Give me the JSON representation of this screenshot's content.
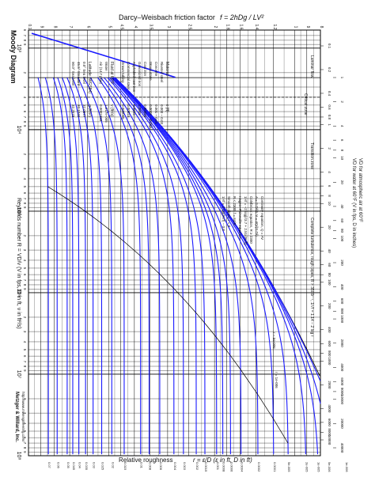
{
  "top_title": {
    "prefix": "Darcy–Weisbach friction factor",
    "formula": "f = 2hDg / LV²"
  },
  "side_title": "Moody Diagram",
  "bottom_title": {
    "prefix": "Relative roughness",
    "formula": "r = ε/D (ε in ft, D in ft)"
  },
  "reynolds_label": "Reynolds number R = VD/ν (V in fps, D in ft, ν in ft²/s)",
  "vd_axis_label": "VD for water at 60°F (V in fps, D in inches)",
  "vd_axis_label2": "VD for atmospheric air at 60°F",
  "credit": {
    "company": "Metzger & Willard, Inc.",
    "url": "http://www.mwengineering.com/"
  },
  "colors": {
    "curve": "#1a1aff",
    "grid": "#000000",
    "paper": "#ffffff"
  },
  "regions": {
    "laminar": "Laminar flow",
    "critical": "Critical zone",
    "transition": "Transition zone",
    "complete": "Complete turbulence, rough pipes, R > 3500r⁻¹, 1/√f = 1.14 − 2 log r"
  },
  "materials_table": {
    "header": [
      "Material",
      "ε (ft)"
    ],
    "rows": [
      [
        "Riveted steel",
        "0.003 – 0.03"
      ],
      [
        "Concrete",
        "0.001 – 0.01"
      ],
      [
        "Wood stave",
        "0.0006 – 0.003"
      ],
      [
        "Cast iron",
        "0.00085"
      ],
      [
        "Galvanized iron",
        "0.0005"
      ],
      [
        "Asphalted cast iron",
        "0.0004"
      ],
      [
        "Commercial steel",
        "0.00015"
      ],
      [
        "Drawn tubing",
        "0.000005"
      ]
    ]
  },
  "fluids_table": {
    "header": [
      "Fluid at 60°F",
      "ν (ft²/s)"
    ],
    "rows": [
      [
        "Water",
        "1.217e-005"
      ],
      [
        "Air (14.7 psia)",
        "0.0001583"
      ]
    ]
  },
  "units_table": {
    "header": [
      "Latitude (WGS84)",
      "g (ft/s²)"
    ],
    "rows": [
      [
        "0.0°  Sea level",
        "32.0877"
      ],
      [
        "45.5°  Standard",
        "32.1740"
      ],
      [
        "90.0°  Sea level",
        "32.2578"
      ]
    ]
  },
  "equations": [
    "Continuity equation, Q = AV",
    "A = π D²/4,  V = 4Q/(π D²)",
    "Colebrook equation, R ≥ 2300",
    "1/√f = −2 log[r/3.7 + 2.51/(R√f)]",
    "Hagen–Poiseuille equation",
    "R < 2300, f = 64/R",
    "Smooth pipes, r = 0",
    "1/√f = 2 log(R√f) − 0.8"
  ],
  "annotations": [
    "r = 5e-006",
    "r = 1e-006"
  ],
  "chart_data": {
    "type": "line",
    "title": "Moody Diagram",
    "orientation": "rotated 90° clockwise",
    "xlabel": "Reynolds number R",
    "ylabel": "Darcy–Weisbach friction factor f",
    "xscale": "log",
    "yscale": "log",
    "xlim": [
      600,
      100000000
    ],
    "ylim": [
      0.008,
      0.1
    ],
    "reynolds_decade_labels": [
      "10³",
      "10⁴",
      "10⁵",
      "10⁶",
      "10⁷",
      "10⁸"
    ],
    "f_tick_labels": [
      "0.1",
      "9",
      "8",
      "7",
      "6",
      "5",
      "4.5",
      "4",
      "3.5",
      "3",
      "2.5",
      "2",
      "1.8",
      "1.6",
      "1.4",
      "1.2",
      "1",
      "9",
      "8"
    ],
    "f_values": [
      0.1,
      0.09,
      0.08,
      0.07,
      0.06,
      0.05,
      0.045,
      0.04,
      0.035,
      0.03,
      0.025,
      0.02,
      0.018,
      0.016,
      0.014,
      0.012,
      0.01,
      0.009,
      0.008
    ],
    "vd_water_ticks": [
      "0.1",
      "0.2",
      "0.4",
      "0.6",
      "0.8",
      "1",
      "2",
      "4",
      "6",
      "8",
      "10",
      "20",
      "40",
      "60",
      "80",
      "100",
      "200",
      "400",
      "600",
      "800",
      "1000",
      "2000",
      "4000",
      "6000",
      "8000",
      "10000"
    ],
    "vd_air_ticks": [
      "1",
      "2",
      "4",
      "6",
      "8",
      "10",
      "20",
      "40",
      "60",
      "80",
      "100",
      "200",
      "400",
      "600",
      "800",
      "1000",
      "2000",
      "4000",
      "6000",
      "8000",
      "10000",
      "20000",
      "40000"
    ],
    "relative_roughness_labels": [
      "1e-006",
      "5e-006",
      "1e-005",
      "2e-005",
      "5e-005",
      "0.0001",
      "0.0002",
      "0.0004",
      "0.0006",
      "0.0008",
      "0.001",
      "0.0015",
      "0.002",
      "0.003",
      "0.004",
      "0.006",
      "0.008",
      "0.01",
      "0.015",
      "0.02",
      "0.025",
      "0.03",
      "0.035",
      "0.04",
      "0.045",
      "0.05",
      "0.06",
      "0.07"
    ],
    "roughness_values": [
      0,
      1e-06,
      5e-06,
      1e-05,
      2e-05,
      5e-05,
      0.0001,
      0.0002,
      0.0004,
      0.0006,
      0.0008,
      0.001,
      0.0015,
      0.002,
      0.003,
      0.004,
      0.006,
      0.008,
      0.01,
      0.015,
      0.02,
      0.025,
      0.03,
      0.035,
      0.04,
      0.045,
      0.05,
      0.06,
      0.07
    ],
    "laminar_series": {
      "equation": "f = 64/R",
      "R_range": [
        600,
        2300
      ]
    },
    "turbulent_series_equation": "Colebrook, R from 2300 to 1e8"
  }
}
